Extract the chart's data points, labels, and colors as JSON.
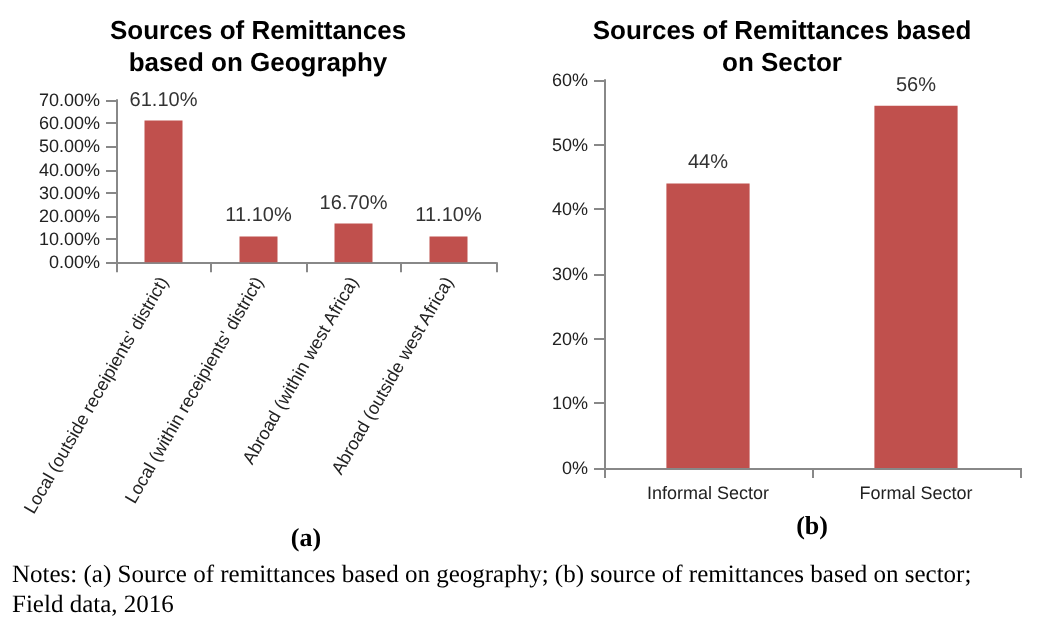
{
  "chart_data": [
    {
      "type": "bar",
      "title": "Sources of Remittances\nbased on Geography",
      "xlabel": "(a)",
      "categories": [
        "Local (outside receipients' district)",
        "Local (within receipients' district)",
        "Abroad (within west Africa)",
        "Abroad (outside west Africa)"
      ],
      "values": [
        61.1,
        11.1,
        16.7,
        11.1
      ],
      "value_labels": [
        "61.10%",
        "11.10%",
        "16.70%",
        "11.10%"
      ],
      "color": "#c0504d",
      "ylim": [
        0,
        70
      ],
      "yticks": [
        {
          "value": 0,
          "label": "0.00%"
        },
        {
          "value": 10,
          "label": "10.00%"
        },
        {
          "value": 20,
          "label": "20.00%"
        },
        {
          "value": 30,
          "label": "30.00%"
        },
        {
          "value": 40,
          "label": "40.00%"
        },
        {
          "value": 50,
          "label": "50.00%"
        },
        {
          "value": 60,
          "label": "60.00%"
        },
        {
          "value": 70,
          "label": "70.00%"
        }
      ],
      "grid": false,
      "annotations": [
        "Notes: (a) Source of remittances based on geography; (b) source of remittances based on sector; Field data, 2016"
      ]
    },
    {
      "type": "bar",
      "title": "Sources of Remittances based\non Sector",
      "xlabel": "(b)",
      "categories": [
        "Informal Sector",
        "Formal Sector"
      ],
      "values": [
        44,
        56
      ],
      "value_labels": [
        "44%",
        "56%"
      ],
      "color": "#c0504d",
      "ylim": [
        0,
        60
      ],
      "yticks": [
        {
          "value": 0,
          "label": "0%"
        },
        {
          "value": 10,
          "label": "10%"
        },
        {
          "value": 20,
          "label": "20%"
        },
        {
          "value": 30,
          "label": "30%"
        },
        {
          "value": 40,
          "label": "40%"
        },
        {
          "value": 50,
          "label": "50%"
        },
        {
          "value": 60,
          "label": "60%"
        }
      ],
      "grid": false
    }
  ]
}
